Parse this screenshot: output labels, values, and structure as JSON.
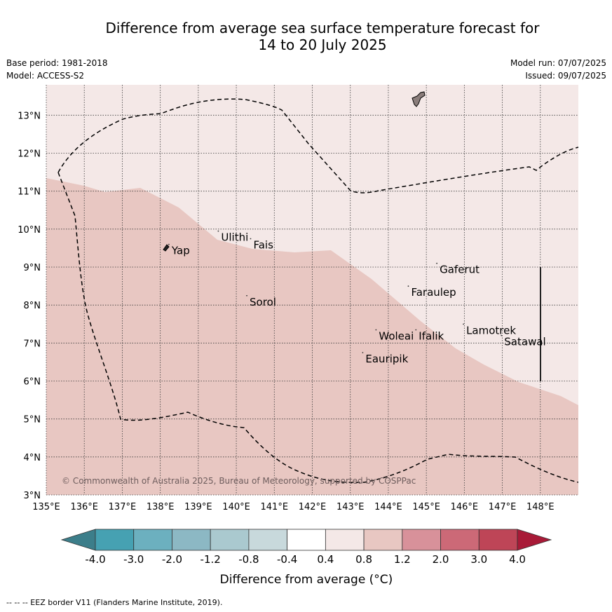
{
  "title": {
    "line1": "Difference from average sea surface temperature forecast for",
    "line2": "14 to 20 July 2025"
  },
  "meta": {
    "base_period": "Base period: 1981-2018",
    "model": "Model: ACCESS-S2",
    "model_run": "Model run: 07/07/2025",
    "issued": "Issued: 09/07/2025"
  },
  "map": {
    "lon_range": [
      135,
      149
    ],
    "lat_range": [
      3,
      13.8
    ],
    "lon_ticks": [
      "135°E",
      "136°E",
      "137°E",
      "138°E",
      "139°E",
      "140°E",
      "141°E",
      "142°E",
      "143°E",
      "144°E",
      "145°E",
      "146°E",
      "147°E",
      "148°E"
    ],
    "lat_ticks": [
      "3°N",
      "4°N",
      "5°N",
      "6°N",
      "7°N",
      "8°N",
      "9°N",
      "10°N",
      "11°N",
      "12°N",
      "13°N"
    ],
    "places": [
      {
        "name": "Yap",
        "lon": 138.3,
        "lat": 9.45
      },
      {
        "name": "Ulithi",
        "lon": 139.6,
        "lat": 9.8
      },
      {
        "name": "Fais",
        "lon": 140.45,
        "lat": 9.6
      },
      {
        "name": "Gaferut",
        "lon": 145.35,
        "lat": 8.95
      },
      {
        "name": "Faraulep",
        "lon": 144.6,
        "lat": 8.35
      },
      {
        "name": "Sorol",
        "lon": 140.35,
        "lat": 8.1
      },
      {
        "name": "Lamotrek",
        "lon": 146.05,
        "lat": 7.35
      },
      {
        "name": "Satawal",
        "lon": 147.05,
        "lat": 7.05
      },
      {
        "name": "Woleai",
        "lon": 143.75,
        "lat": 7.2
      },
      {
        "name": "Ifalik",
        "lon": 144.8,
        "lat": 7.2
      },
      {
        "name": "Eauripik",
        "lon": 143.4,
        "lat": 6.6
      }
    ],
    "copyright": "© Commonwealth of Australia 2025, Bureau of Meteorology, supported by COSPPac",
    "colors": {
      "warm_light": "#f4e8e7",
      "warm_medium": "#e8c7c2",
      "land": "#8a7d7b"
    }
  },
  "colorbar": {
    "labels": [
      "-4.0",
      "-3.0",
      "-2.0",
      "-1.2",
      "-0.8",
      "-0.4",
      "0.4",
      "0.8",
      "1.2",
      "2.0",
      "3.0",
      "4.0"
    ],
    "colors": [
      "#3c7e8a",
      "#46a1b2",
      "#6cb0bf",
      "#8cb8c4",
      "#aac9cf",
      "#c8d9dc",
      "#ffffff",
      "#f4e8e7",
      "#e8c7c2",
      "#d8919a",
      "#cc6977",
      "#be4557",
      "#a81a37"
    ],
    "title": "Difference from average (°C)"
  },
  "footer": "--  --  -- EEZ border V11 (Flanders Marine Institute, 2019)."
}
